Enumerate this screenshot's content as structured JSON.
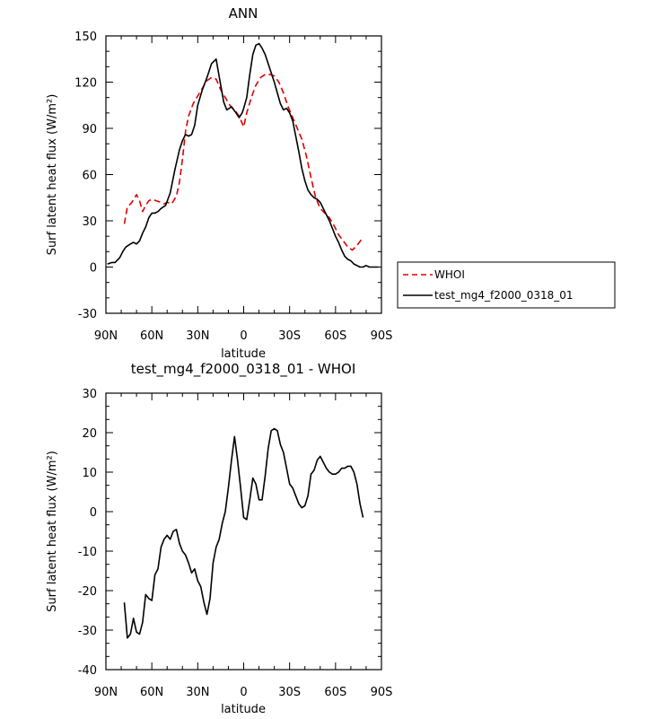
{
  "chart_data": [
    {
      "type": "line",
      "title": "ANN",
      "xlabel": "latitude",
      "ylabel": "Surf latent heat flux (W/m²)",
      "xlim": [
        90,
        -90
      ],
      "ylim": [
        -30,
        150
      ],
      "x_ticks": [
        {
          "value": 90,
          "label": "90N"
        },
        {
          "value": 60,
          "label": "60N"
        },
        {
          "value": 30,
          "label": "30N"
        },
        {
          "value": 0,
          "label": "0"
        },
        {
          "value": -30,
          "label": "30S"
        },
        {
          "value": -60,
          "label": "60S"
        },
        {
          "value": -90,
          "label": "90S"
        }
      ],
      "y_ticks": [
        -30,
        0,
        30,
        60,
        90,
        120,
        150
      ],
      "grid": false,
      "legend": "right",
      "series": [
        {
          "name": "WHOI",
          "color": "#e00000",
          "dash": "dashed",
          "x": [
            78,
            76,
            73,
            70,
            68,
            66,
            64,
            62,
            60,
            57,
            54,
            52,
            50,
            47,
            44,
            42,
            40,
            38,
            36,
            33,
            30,
            27,
            24,
            21,
            18,
            15,
            12,
            9,
            6,
            3,
            0,
            -2,
            -5,
            -8,
            -11,
            -14,
            -17,
            -20,
            -23,
            -26,
            -29,
            -32,
            -35,
            -38,
            -41,
            -44,
            -47,
            -50,
            -53,
            -56,
            -59,
            -62,
            -65,
            -68,
            -71,
            -74,
            -77
          ],
          "values": [
            28,
            39,
            42,
            47,
            43,
            36,
            40,
            43,
            44,
            43,
            42,
            41,
            42,
            41,
            46,
            55,
            70,
            88,
            98,
            106,
            111,
            116,
            121,
            123,
            122,
            115,
            110,
            105,
            102,
            98,
            91,
            100,
            110,
            118,
            123,
            125,
            125,
            124,
            120,
            113,
            104,
            97,
            90,
            83,
            72,
            58,
            45,
            38,
            35,
            32,
            27,
            21,
            17,
            13,
            11,
            14,
            18
          ]
        },
        {
          "name": "test_mg4_f2000_0318_01",
          "color": "#000000",
          "dash": "solid",
          "x": [
            89,
            86,
            84,
            81,
            79,
            77,
            74,
            72,
            70,
            68,
            66,
            64,
            62,
            60,
            58,
            56,
            54,
            51,
            48,
            45,
            42,
            40,
            38,
            36,
            34,
            32,
            30,
            27,
            24,
            21,
            18,
            15,
            13,
            11,
            8,
            5,
            3,
            1,
            0,
            -2,
            -4,
            -6,
            -8,
            -10,
            -12,
            -14,
            -16,
            -18,
            -20,
            -22,
            -24,
            -26,
            -28,
            -30,
            -32,
            -34,
            -36,
            -38,
            -40,
            -42,
            -44,
            -46,
            -48,
            -50,
            -52,
            -54,
            -56,
            -58,
            -60,
            -62,
            -64,
            -66,
            -68,
            -70,
            -72,
            -74,
            -76,
            -78,
            -80,
            -82,
            -84,
            -86,
            -88
          ],
          "values": [
            2,
            3,
            3,
            6,
            10,
            13,
            15,
            16,
            15,
            17,
            22,
            26,
            32,
            35,
            35,
            36,
            38,
            40,
            48,
            63,
            76,
            82,
            86,
            85,
            86,
            92,
            105,
            115,
            123,
            132,
            135,
            118,
            107,
            102,
            104,
            100,
            97,
            100,
            103,
            110,
            125,
            138,
            144,
            145,
            142,
            138,
            132,
            126,
            120,
            113,
            106,
            102,
            103,
            100,
            95,
            85,
            75,
            64,
            56,
            50,
            47,
            45,
            44,
            42,
            38,
            34,
            30,
            25,
            20,
            16,
            11,
            7,
            5,
            4,
            2,
            1,
            0,
            0,
            1,
            0,
            0,
            0,
            0
          ]
        }
      ]
    },
    {
      "type": "line",
      "title": "test_mg4_f2000_0318_01 - WHOI",
      "xlabel": "latitude",
      "ylabel": "Surf latent heat flux (W/m²)",
      "xlim": [
        90,
        -90
      ],
      "ylim": [
        -40,
        30
      ],
      "x_ticks": [
        {
          "value": 90,
          "label": "90N"
        },
        {
          "value": 60,
          "label": "60N"
        },
        {
          "value": 30,
          "label": "30N"
        },
        {
          "value": 0,
          "label": "0"
        },
        {
          "value": -30,
          "label": "30S"
        },
        {
          "value": -60,
          "label": "60S"
        },
        {
          "value": -90,
          "label": "90S"
        }
      ],
      "y_ticks": [
        -40,
        -30,
        -20,
        -10,
        0,
        10,
        20,
        30
      ],
      "grid": false,
      "series": [
        {
          "color": "#000000",
          "dash": "solid",
          "x": [
            78,
            76,
            74,
            72,
            70,
            68,
            66,
            64,
            62,
            60,
            58,
            56,
            54,
            52,
            50,
            48,
            46,
            44,
            42,
            40,
            38,
            36,
            34,
            32,
            30,
            28,
            26,
            24,
            22,
            20,
            18,
            16,
            14,
            12,
            10,
            8,
            6,
            4,
            2,
            0,
            -2,
            -4,
            -6,
            -8,
            -10,
            -12,
            -14,
            -16,
            -18,
            -20,
            -22,
            -24,
            -26,
            -28,
            -30,
            -32,
            -34,
            -36,
            -38,
            -40,
            -42,
            -44,
            -46,
            -48,
            -50,
            -52,
            -54,
            -56,
            -58,
            -60,
            -62,
            -64,
            -66,
            -68,
            -70,
            -72,
            -74,
            -76,
            -78
          ],
          "values": [
            -23,
            -32,
            -31,
            -27,
            -30.5,
            -31,
            -28,
            -21,
            -22,
            -22.5,
            -16,
            -14.5,
            -9,
            -7,
            -6,
            -7,
            -5,
            -4.5,
            -8,
            -10,
            -11,
            -13,
            -15.5,
            -14.5,
            -17.5,
            -19,
            -23,
            -26,
            -22,
            -13,
            -9,
            -7,
            -3,
            0,
            6,
            13,
            19,
            13,
            6,
            -1.5,
            -2,
            3,
            8.5,
            7,
            3,
            3,
            9,
            16,
            20.5,
            21,
            20.5,
            17,
            15,
            11,
            7,
            6,
            4,
            2,
            1,
            1.5,
            4,
            9.5,
            10.5,
            13,
            14,
            12.5,
            11,
            10,
            9.5,
            9.5,
            10,
            11,
            11,
            11.5,
            11.5,
            10,
            7,
            2,
            -1.5
          ]
        }
      ]
    }
  ]
}
